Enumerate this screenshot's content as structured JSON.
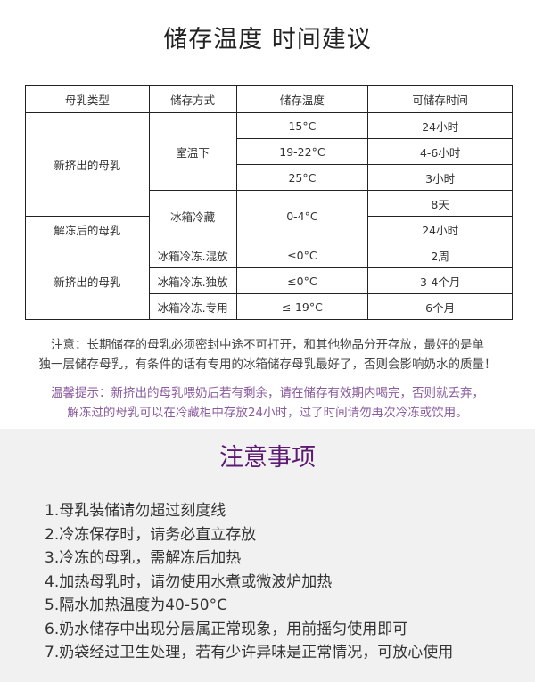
{
  "title": "储存温度 时间建议",
  "table": {
    "headers": [
      "母乳类型",
      "储存方式",
      "储存温度",
      "可储存时间"
    ],
    "types": [
      "新挤出的母乳",
      "解冻后的母乳",
      "新挤出的母乳"
    ],
    "methods": [
      "室温下",
      "冰箱冷藏",
      "冰箱冷冻.混放",
      "冰箱冷冻.独放",
      "冰箱冷冻.专用"
    ],
    "temps": [
      "15°C",
      "19-22°C",
      "25°C",
      "0-4°C",
      "≤0°C",
      "≤0°C",
      "≤-19°C"
    ],
    "durations": [
      "24小时",
      "4-6小时",
      "3小时",
      "8天",
      "24小时",
      "2周",
      "3-4个月",
      "6个月"
    ]
  },
  "note": {
    "line1": "注意：长期储存的母乳必须密封中途不可打开，和其他物品分开存放，最好的是单",
    "line2": "独一层储存母乳，有条件的话有专用的冰箱储存母乳最好了，否则会影响奶水的质量！"
  },
  "tip": {
    "line1": "温馨提示：新挤出的母乳喂奶后若有剩余，请在储存有效期内喝完，否则就丢弃，",
    "line2": "解冻过的母乳可以在冷藏柜中存放24小时，过了时间请勿再次冷冻或饮用。"
  },
  "precautions": {
    "title": "注意事项",
    "items": [
      "1.母乳装储请勿超过刻度线",
      "2.冷冻保存时，请务必直立存放",
      "3.冷冻的母乳，需解冻后加热",
      "4.加热母乳时，请勿使用水煮或微波炉加热",
      "5.隔水加热温度为40-50°C",
      "6.奶水储存中出现分层属正常现象，用前摇匀使用即可",
      "7.奶袋经过卫生处理，若有少许异味是正常情况，可放心使用"
    ]
  },
  "colors": {
    "accent": "#5c1a72",
    "tip": "#8a5a9e",
    "section_bg": "#f1f1f1"
  }
}
